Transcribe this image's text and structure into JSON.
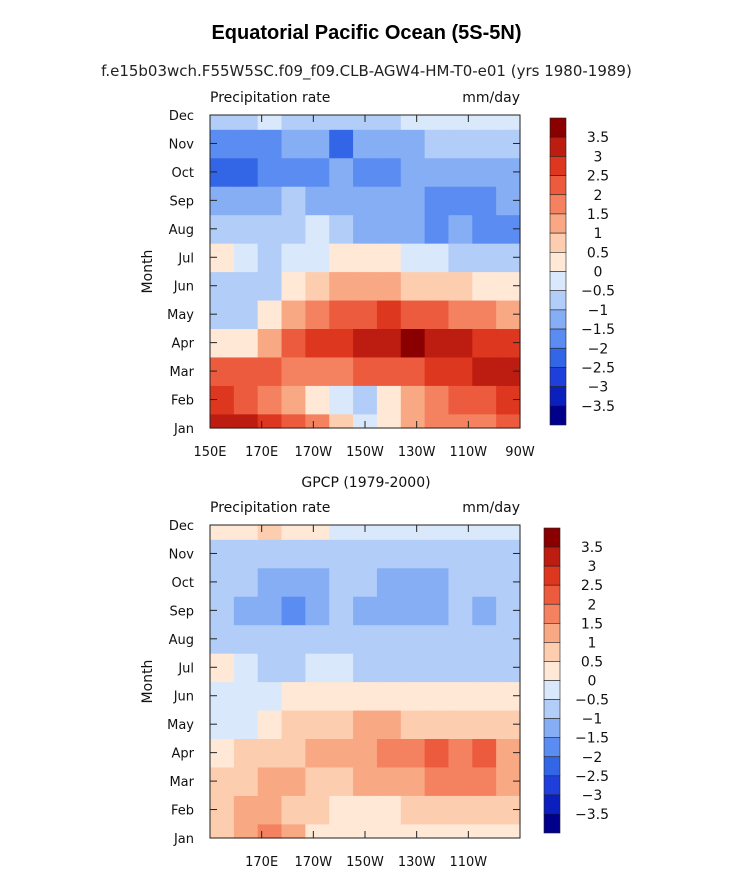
{
  "title": "Equatorial Pacific Ocean (5S-5N)",
  "subtitle": "f.e15b03wch.F55W5SC.f09_f09.CLB-AGW4-HM-T0-e01 (yrs 1980-1989)",
  "colors": {
    "levels": [
      "#00008b",
      "#0a1fbd",
      "#1e3fdb",
      "#3366e6",
      "#5b8cf2",
      "#86aef5",
      "#b2cdf7",
      "#d9e8fb",
      "#ffe8d6",
      "#fdcdb0",
      "#f9a884",
      "#f48260",
      "#ed5b3e",
      "#dd3720",
      "#bd1c10",
      "#8a0000"
    ]
  },
  "chart_data": [
    {
      "type": "heatmap",
      "title": "Precipitation rate",
      "units": "mm/day",
      "xlabel": "",
      "ylabel": "Month",
      "x_ticks": [
        "150E",
        "170E",
        "170W",
        "150W",
        "130W",
        "110W",
        "90W"
      ],
      "x_values": [
        150,
        170,
        190,
        210,
        230,
        250,
        270
      ],
      "xlim": [
        150,
        270
      ],
      "months": [
        "Jan",
        "Feb",
        "Mar",
        "Apr",
        "May",
        "Jun",
        "Jul",
        "Aug",
        "Sep",
        "Oct",
        "Nov",
        "Dec"
      ],
      "colorbar_labels": [
        "3.5",
        "3",
        "2.5",
        "2",
        "1.5",
        "1",
        "0.5",
        "0",
        "-0.5",
        "-1",
        "-1.5",
        "-2",
        "-2.5",
        "-3",
        "-3.5"
      ],
      "levels": [
        -3.5,
        -3,
        -2.5,
        -2,
        -1.5,
        -1,
        -0.5,
        0,
        0.5,
        1,
        1.5,
        2,
        2.5,
        3,
        3.5
      ],
      "values": [
        [
          3.2,
          3.0,
          2.6,
          2.0,
          1.5,
          0.5,
          -0.2,
          0.2,
          1.2,
          1.6,
          1.8,
          1.9,
          2.1
        ],
        [
          2.6,
          2.4,
          1.8,
          1.2,
          0.3,
          -0.4,
          -0.6,
          0.2,
          1.3,
          1.8,
          2.1,
          2.4,
          2.8
        ],
        [
          2.4,
          2.2,
          2.0,
          1.8,
          1.6,
          1.8,
          2.0,
          2.2,
          2.4,
          2.6,
          2.8,
          3.0,
          3.2
        ],
        [
          0.2,
          0.4,
          1.0,
          2.2,
          2.6,
          2.9,
          3.0,
          3.3,
          3.6,
          3.2,
          3.0,
          2.9,
          2.6
        ],
        [
          -1.0,
          -0.6,
          0.0,
          1.2,
          1.8,
          2.2,
          2.4,
          2.5,
          2.3,
          2.1,
          1.8,
          1.6,
          1.4
        ],
        [
          -0.6,
          -0.8,
          -0.6,
          0.4,
          0.9,
          1.2,
          1.2,
          1.1,
          0.9,
          0.7,
          0.5,
          0.3,
          0.1
        ],
        [
          0.4,
          -0.4,
          -0.8,
          -0.5,
          -0.3,
          0.0,
          0.2,
          0.1,
          -0.2,
          -0.5,
          -0.6,
          -0.8,
          -0.9
        ],
        [
          -0.6,
          -0.6,
          -0.7,
          -0.6,
          -0.5,
          -0.8,
          -1.2,
          -1.3,
          -1.2,
          -1.6,
          -1.5,
          -1.6,
          -1.7
        ],
        [
          -1.2,
          -1.4,
          -1.2,
          -1.0,
          -1.1,
          -1.4,
          -1.5,
          -1.4,
          -1.2,
          -1.6,
          -1.7,
          -1.6,
          -1.4
        ],
        [
          -2.2,
          -2.1,
          -2.0,
          -1.8,
          -1.6,
          -1.5,
          -1.6,
          -1.6,
          -1.5,
          -1.4,
          -1.3,
          -1.3,
          -1.2
        ],
        [
          -1.8,
          -2.0,
          -1.6,
          -1.4,
          -1.3,
          -2.1,
          -1.3,
          -1.2,
          -1.1,
          -1.0,
          -0.9,
          -0.9,
          -0.8
        ],
        [
          -0.8,
          -0.6,
          -0.4,
          -0.6,
          -0.6,
          -0.6,
          -0.6,
          -0.6,
          -0.5,
          -0.5,
          -0.5,
          -0.5,
          -0.5
        ]
      ]
    },
    {
      "type": "heatmap",
      "title": "GPCP (1979-2000)",
      "subtitle": "Precipitation rate",
      "units": "mm/day",
      "xlabel": "",
      "ylabel": "Month",
      "x_ticks": [
        "170E",
        "170W",
        "150W",
        "130W",
        "110W"
      ],
      "x_values": [
        170,
        190,
        210,
        230,
        250
      ],
      "xlim": [
        150,
        270
      ],
      "months": [
        "Jan",
        "Feb",
        "Mar",
        "Apr",
        "May",
        "Jun",
        "Jul",
        "Aug",
        "Sep",
        "Oct",
        "Nov",
        "Dec"
      ],
      "colorbar_labels": [
        "3.5",
        "3",
        "2.5",
        "2",
        "1.5",
        "1",
        "0.5",
        "0",
        "-0.5",
        "-1",
        "-1.5",
        "-2",
        "-2.5",
        "-3",
        "-3.5"
      ],
      "levels": [
        -3.5,
        -3,
        -2.5,
        -2,
        -1.5,
        -1,
        -0.5,
        0,
        0.5,
        1,
        1.5,
        2,
        2.5,
        3,
        3.5
      ],
      "values": [
        [
          0.8,
          1.2,
          1.6,
          1.0,
          0.4,
          0.2,
          0.2,
          0.2,
          0.1,
          0.1,
          0.0,
          0.1,
          0.2
        ],
        [
          0.8,
          1.0,
          1.3,
          0.8,
          0.5,
          0.4,
          0.4,
          0.4,
          0.5,
          0.5,
          0.5,
          0.5,
          0.5
        ],
        [
          0.6,
          0.8,
          1.1,
          1.0,
          0.8,
          0.9,
          1.0,
          1.2,
          1.4,
          1.6,
          1.8,
          1.5,
          1.2
        ],
        [
          0.3,
          0.6,
          0.8,
          0.9,
          1.0,
          1.2,
          1.4,
          1.6,
          1.8,
          2.0,
          1.8,
          2.0,
          1.4
        ],
        [
          -0.2,
          -0.2,
          0.2,
          0.5,
          0.6,
          0.8,
          1.0,
          1.0,
          0.9,
          0.8,
          0.7,
          0.6,
          0.5
        ],
        [
          -0.4,
          -0.2,
          -0.2,
          0.0,
          0.3,
          0.3,
          0.3,
          0.3,
          0.2,
          0.2,
          0.1,
          0.1,
          0.0
        ],
        [
          0.2,
          -0.4,
          -0.6,
          -0.6,
          -0.5,
          -0.5,
          -0.6,
          -0.6,
          -0.6,
          -0.6,
          -0.6,
          -0.6,
          -0.6
        ],
        [
          -0.6,
          -0.8,
          -0.8,
          -0.8,
          -0.8,
          -0.8,
          -0.8,
          -0.9,
          -0.9,
          -0.9,
          -0.8,
          -0.9,
          -0.8
        ],
        [
          -1.0,
          -1.2,
          -1.4,
          -1.6,
          -1.3,
          -1.0,
          -1.1,
          -1.3,
          -1.3,
          -1.2,
          -1.0,
          -1.2,
          -1.0
        ],
        [
          -0.9,
          -1.0,
          -1.2,
          -1.2,
          -1.1,
          -1.0,
          -1.0,
          -1.2,
          -1.2,
          -1.1,
          -0.9,
          -1.0,
          -0.9
        ],
        [
          -0.7,
          -0.8,
          -0.9,
          -0.8,
          -0.8,
          -0.7,
          -0.7,
          -0.7,
          -0.7,
          -0.6,
          -0.6,
          -0.6,
          -0.6
        ],
        [
          0.0,
          0.4,
          0.8,
          0.4,
          0.0,
          -0.2,
          -0.3,
          -0.3,
          -0.4,
          -0.4,
          -0.4,
          -0.4,
          -0.4
        ]
      ]
    }
  ]
}
